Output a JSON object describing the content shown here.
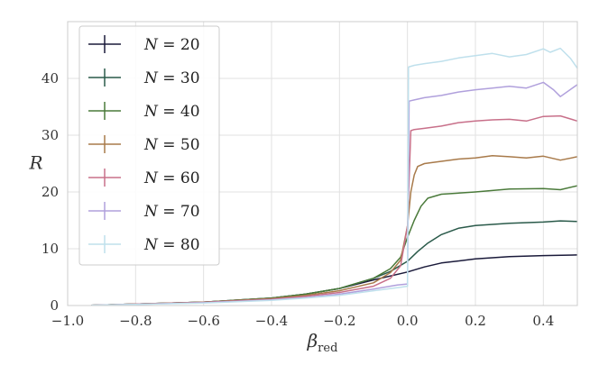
{
  "chart_data": {
    "type": "line",
    "xlabel": "β",
    "xlabel_sub": "red",
    "ylabel": "R",
    "xlim": [
      -1.0,
      0.5
    ],
    "ylim": [
      0,
      50
    ],
    "xticks": [
      -1.0,
      -0.8,
      -0.6,
      -0.4,
      -0.2,
      0.0,
      0.2,
      0.4
    ],
    "xtick_labels": [
      "−1.0",
      "−0.8",
      "−0.6",
      "−0.4",
      "−0.2",
      "0.0",
      "0.2",
      "0.4"
    ],
    "yticks": [
      0,
      10,
      20,
      30,
      40
    ],
    "ytick_labels": [
      "0",
      "10",
      "20",
      "30",
      "40"
    ],
    "grid": true,
    "legend_placement": "top-left",
    "series": [
      {
        "name": "N = 20",
        "var": "N",
        "val": "20",
        "color": "#1a1a3a",
        "x": [
          -0.93,
          -0.8,
          -0.6,
          -0.4,
          -0.3,
          -0.2,
          -0.1,
          0.0,
          0.05,
          0.1,
          0.2,
          0.3,
          0.4,
          0.5
        ],
        "y": [
          0.05,
          0.25,
          0.6,
          1.3,
          2.0,
          3.0,
          4.5,
          5.9,
          6.8,
          7.5,
          8.2,
          8.6,
          8.8,
          8.9
        ]
      },
      {
        "name": "N = 30",
        "var": "N",
        "val": "30",
        "color": "#2a5a4a",
        "x": [
          -0.93,
          -0.8,
          -0.6,
          -0.4,
          -0.3,
          -0.2,
          -0.1,
          -0.05,
          0.0,
          0.03,
          0.06,
          0.1,
          0.15,
          0.2,
          0.3,
          0.4,
          0.45,
          0.5
        ],
        "y": [
          0.05,
          0.25,
          0.6,
          1.3,
          2.0,
          3.0,
          4.8,
          6.0,
          7.8,
          9.5,
          11.0,
          12.5,
          13.6,
          14.1,
          14.5,
          14.7,
          14.9,
          14.8
        ]
      },
      {
        "name": "N = 40",
        "var": "N",
        "val": "40",
        "color": "#4a7a3a",
        "x": [
          -0.93,
          -0.8,
          -0.6,
          -0.4,
          -0.3,
          -0.2,
          -0.1,
          -0.05,
          -0.02,
          0.0,
          0.02,
          0.04,
          0.06,
          0.1,
          0.2,
          0.3,
          0.4,
          0.45,
          0.5
        ],
        "y": [
          0.05,
          0.25,
          0.6,
          1.3,
          2.0,
          3.0,
          4.8,
          6.5,
          8.5,
          12.0,
          15.0,
          17.5,
          18.9,
          19.6,
          20.0,
          20.5,
          20.6,
          20.4,
          21.1
        ]
      },
      {
        "name": "N = 50",
        "var": "N",
        "val": "50",
        "color": "#a87a4a",
        "x": [
          -0.93,
          -0.8,
          -0.6,
          -0.4,
          -0.3,
          -0.2,
          -0.1,
          -0.05,
          -0.02,
          0.0,
          0.01,
          0.02,
          0.03,
          0.05,
          0.1,
          0.15,
          0.2,
          0.25,
          0.3,
          0.35,
          0.4,
          0.45,
          0.5
        ],
        "y": [
          0.05,
          0.25,
          0.6,
          1.2,
          1.8,
          2.6,
          4.0,
          5.8,
          8.0,
          14.0,
          20.0,
          23.0,
          24.5,
          25.0,
          25.4,
          25.8,
          26.0,
          26.4,
          26.2,
          26.0,
          26.3,
          25.6,
          26.2
        ]
      },
      {
        "name": "N = 60",
        "var": "N",
        "val": "60",
        "color": "#c8708a",
        "x": [
          -0.93,
          -0.8,
          -0.6,
          -0.4,
          -0.3,
          -0.2,
          -0.1,
          -0.05,
          -0.02,
          0.0,
          0.01,
          0.02,
          0.05,
          0.1,
          0.15,
          0.2,
          0.25,
          0.3,
          0.35,
          0.4,
          0.45,
          0.5
        ],
        "y": [
          0.05,
          0.25,
          0.55,
          1.1,
          1.6,
          2.3,
          3.4,
          4.8,
          7.0,
          14.0,
          30.8,
          31.0,
          31.2,
          31.6,
          32.2,
          32.5,
          32.7,
          32.8,
          32.5,
          33.3,
          33.4,
          32.5
        ]
      },
      {
        "name": "N = 70",
        "var": "N",
        "val": "70",
        "color": "#b0a0dc",
        "x": [
          -0.93,
          -0.8,
          -0.6,
          -0.4,
          -0.3,
          -0.2,
          -0.1,
          -0.03,
          0.0,
          0.005,
          0.02,
          0.05,
          0.1,
          0.15,
          0.2,
          0.25,
          0.3,
          0.35,
          0.4,
          0.43,
          0.45,
          0.5
        ],
        "y": [
          0.05,
          0.2,
          0.5,
          1.0,
          1.4,
          2.0,
          2.9,
          3.6,
          3.8,
          36.0,
          36.2,
          36.6,
          37.0,
          37.6,
          38.0,
          38.3,
          38.6,
          38.3,
          39.3,
          38.0,
          36.8,
          38.9
        ]
      },
      {
        "name": "N = 80",
        "var": "N",
        "val": "80",
        "color": "#bfe0ec",
        "x": [
          -0.93,
          -0.8,
          -0.6,
          -0.4,
          -0.3,
          -0.2,
          -0.1,
          -0.02,
          0.0,
          0.003,
          0.02,
          0.05,
          0.1,
          0.15,
          0.2,
          0.25,
          0.3,
          0.35,
          0.4,
          0.42,
          0.45,
          0.48,
          0.5
        ],
        "y": [
          0.05,
          0.2,
          0.45,
          0.9,
          1.3,
          1.8,
          2.6,
          3.2,
          3.4,
          42.0,
          42.3,
          42.6,
          43.0,
          43.6,
          44.0,
          44.4,
          43.8,
          44.2,
          45.2,
          44.6,
          45.3,
          43.5,
          41.8
        ]
      }
    ]
  }
}
